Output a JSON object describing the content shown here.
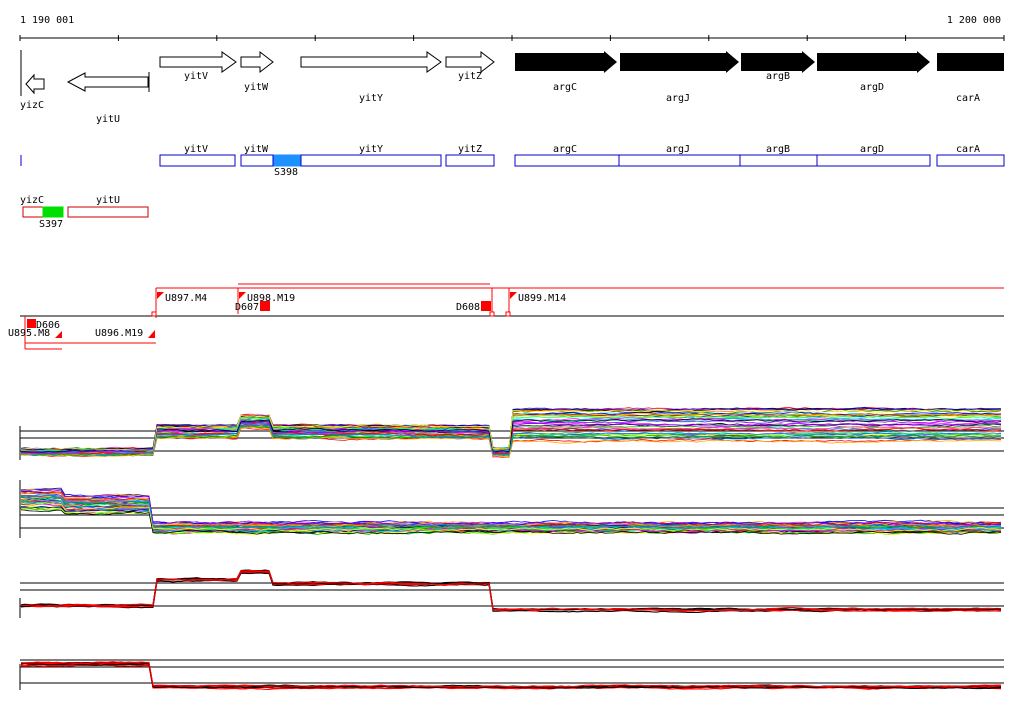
{
  "ruler": {
    "start_label": "1 190 001",
    "end_label": "1 200 000"
  },
  "genes_forward": [
    {
      "name": "yitV",
      "strand": "+",
      "color": "#ffffff"
    },
    {
      "name": "yitW",
      "strand": "+",
      "color": "#ffffff"
    },
    {
      "name": "yitY",
      "strand": "+",
      "color": "#ffffff"
    },
    {
      "name": "yitZ",
      "strand": "+",
      "color": "#ffffff"
    },
    {
      "name": "argC",
      "strand": "+",
      "color": "#000000"
    },
    {
      "name": "argJ",
      "strand": "+",
      "color": "#000000"
    },
    {
      "name": "argB",
      "strand": "+",
      "color": "#000000"
    },
    {
      "name": "argD",
      "strand": "+",
      "color": "#000000"
    },
    {
      "name": "carA",
      "strand": "+",
      "color": "#000000"
    }
  ],
  "genes_reverse": [
    {
      "name": "yizC",
      "strand": "-"
    },
    {
      "name": "yitU",
      "strand": "-"
    }
  ],
  "annotation_forward": [
    "yitV",
    "yitW",
    "yitY",
    "yitZ",
    "argC",
    "argJ",
    "argB",
    "argD",
    "carA"
  ],
  "annotation_reverse": [
    "yizC",
    "yitU"
  ],
  "segments": [
    {
      "name": "S398",
      "color": "#1e90ff"
    },
    {
      "name": "S397",
      "color": "#00e000"
    }
  ],
  "transcripts": [
    {
      "name": "U897.M4"
    },
    {
      "name": "U898.M19"
    },
    {
      "name": "U899.M14"
    },
    {
      "name": "U895.M8"
    },
    {
      "name": "U896.M19"
    },
    {
      "name": "D606"
    },
    {
      "name": "D607"
    },
    {
      "name": "D608"
    }
  ],
  "colors": {
    "forward_track": "#0000cc",
    "reverse_track": "#cc0000",
    "transcript": "#ff0000",
    "axis": "#000000"
  }
}
